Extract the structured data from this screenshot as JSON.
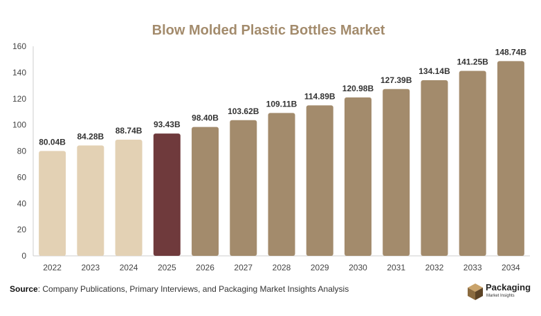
{
  "chart_data": {
    "type": "bar",
    "title": "Blow Molded Plastic Bottles Market",
    "categories": [
      "2022",
      "2023",
      "2024",
      "2025",
      "2026",
      "2027",
      "2028",
      "2029",
      "2030",
      "2031",
      "2032",
      "2033",
      "2034"
    ],
    "values": [
      80.04,
      84.28,
      88.74,
      93.43,
      98.4,
      103.62,
      109.11,
      114.89,
      120.98,
      127.39,
      134.14,
      141.25,
      148.74
    ],
    "data_labels": [
      "80.04B",
      "84.28B",
      "88.74B",
      "93.43B",
      "98.40B",
      "103.62B",
      "109.11B",
      "114.89B",
      "120.98B",
      "127.39B",
      "134.14B",
      "141.25B",
      "148.74B"
    ],
    "xlabel": "",
    "ylabel": "",
    "ylim": [
      0,
      160
    ],
    "yticks": [
      0,
      20,
      40,
      60,
      80,
      100,
      120,
      140,
      160
    ],
    "grid": false,
    "legend": "none",
    "colors": {
      "historical": "#e3d1b4",
      "current": "#6f3a3c",
      "forecast": "#a38b6c",
      "title": "#a38b6c"
    },
    "bar_groups": [
      "historical",
      "historical",
      "historical",
      "current",
      "forecast",
      "forecast",
      "forecast",
      "forecast",
      "forecast",
      "forecast",
      "forecast",
      "forecast",
      "forecast"
    ]
  },
  "source": {
    "label": "Source",
    "text": ": Company Publications, Primary Interviews, and Packaging Market Insights Analysis"
  },
  "logo": {
    "icon": "box-icon",
    "name": "Packaging",
    "tagline": "Market Insights"
  }
}
